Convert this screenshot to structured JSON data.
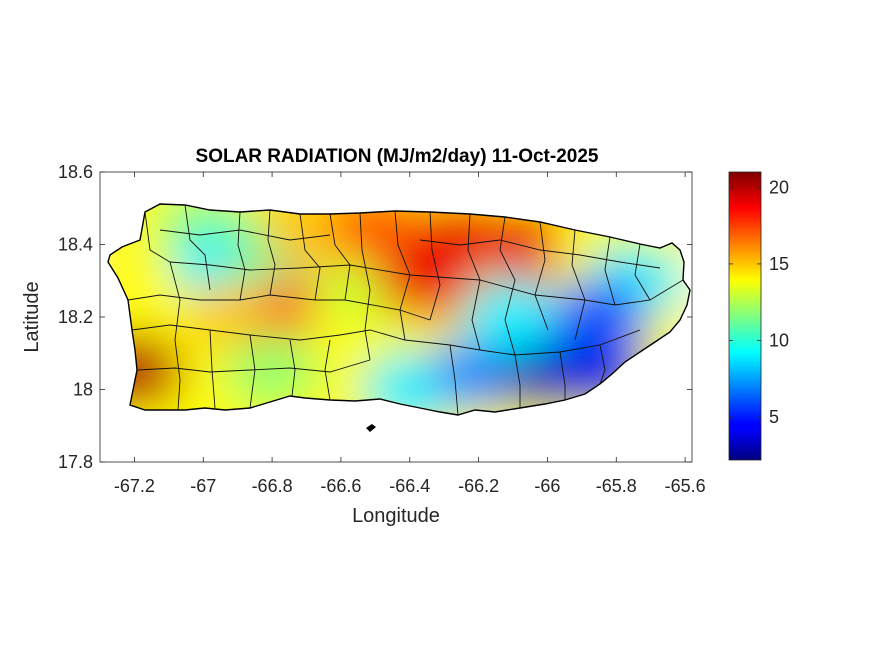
{
  "chart_data": {
    "type": "heatmap",
    "title": "SOLAR RADIATION (MJ/m2/day) 11-Oct-2025",
    "xlabel": "Longitude",
    "ylabel": "Latitude",
    "xlim": [
      -67.3,
      -65.58
    ],
    "ylim": [
      17.8,
      18.6
    ],
    "xticks": [
      -67.2,
      -67,
      -66.8,
      -66.6,
      -66.4,
      -66.2,
      -66,
      -65.8,
      -65.6
    ],
    "xtick_labels": [
      "-67.2",
      "-67",
      "-66.8",
      "-66.6",
      "-66.4",
      "-66.2",
      "-66",
      "-65.8",
      "-65.6"
    ],
    "yticks": [
      17.8,
      18,
      18.2,
      18.4,
      18.6
    ],
    "ytick_labels": [
      "17.8",
      "18",
      "18.2",
      "18.4",
      "18.6"
    ],
    "colormap": "jet",
    "colorbar": {
      "range": [
        2.2,
        21
      ],
      "ticks": [
        5,
        10,
        15,
        20
      ],
      "tick_labels": [
        "5",
        "10",
        "15",
        "20"
      ]
    },
    "region": "Puerto Rico",
    "regional_values": [
      {
        "lon": -67.2,
        "lat": 18.05,
        "value": 20
      },
      {
        "lon": -67.18,
        "lat": 18.38,
        "value": 14
      },
      {
        "lon": -67.0,
        "lat": 18.45,
        "value": 12
      },
      {
        "lon": -66.95,
        "lat": 18.35,
        "value": 9
      },
      {
        "lon": -66.8,
        "lat": 18.38,
        "value": 11
      },
      {
        "lon": -66.7,
        "lat": 18.45,
        "value": 15
      },
      {
        "lon": -66.9,
        "lat": 18.2,
        "value": 15
      },
      {
        "lon": -66.7,
        "lat": 18.22,
        "value": 17
      },
      {
        "lon": -66.55,
        "lat": 18.25,
        "value": 13
      },
      {
        "lon": -66.5,
        "lat": 18.45,
        "value": 17
      },
      {
        "lon": -66.35,
        "lat": 18.3,
        "value": 19
      },
      {
        "lon": -66.25,
        "lat": 18.42,
        "value": 19
      },
      {
        "lon": -66.05,
        "lat": 18.4,
        "value": 19
      },
      {
        "lon": -65.85,
        "lat": 18.38,
        "value": 14
      },
      {
        "lon": -65.75,
        "lat": 18.3,
        "value": 9
      },
      {
        "lon": -66.6,
        "lat": 18.1,
        "value": 14
      },
      {
        "lon": -66.8,
        "lat": 18.05,
        "value": 12
      },
      {
        "lon": -66.4,
        "lat": 18.0,
        "value": 9
      },
      {
        "lon": -66.2,
        "lat": 18.05,
        "value": 7
      },
      {
        "lon": -66.0,
        "lat": 18.05,
        "value": 3
      },
      {
        "lon": -65.85,
        "lat": 18.05,
        "value": 4
      },
      {
        "lon": -66.1,
        "lat": 18.2,
        "value": 9
      },
      {
        "lon": -65.85,
        "lat": 18.2,
        "value": 6
      }
    ]
  },
  "colors": {
    "axes": "#262626",
    "boundary": "#000000",
    "background": "#ffffff"
  }
}
